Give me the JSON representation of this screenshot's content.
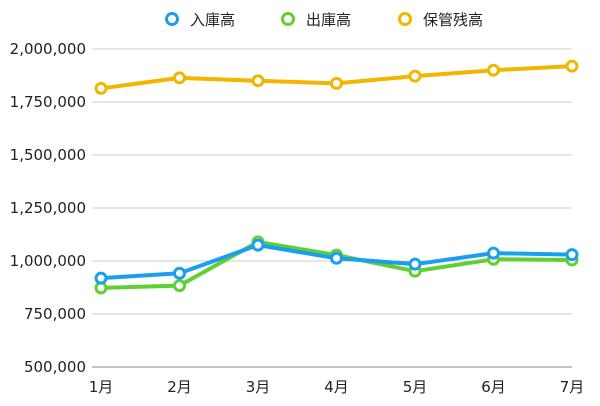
{
  "chart_data": {
    "type": "line",
    "title": "",
    "xlabel": "",
    "ylabel": "",
    "categories": [
      "1月",
      "2月",
      "3月",
      "4月",
      "5月",
      "6月",
      "7月"
    ],
    "ylim": [
      500000,
      2000000
    ],
    "yticks": [
      500000,
      750000,
      1000000,
      1250000,
      1500000,
      1750000,
      2000000
    ],
    "ytick_labels": [
      "500,000",
      "750,000",
      "1,000,000",
      "1,250,000",
      "1,500,000",
      "1,750,000",
      "2,000,000"
    ],
    "grid": true,
    "legend_position": "top",
    "series": [
      {
        "name": "入庫高",
        "color": "#1a9ff0",
        "values": [
          919000,
          942000,
          1075000,
          1013000,
          985000,
          1037000,
          1030000
        ]
      },
      {
        "name": "出庫高",
        "color": "#5fcf32",
        "values": [
          873000,
          884000,
          1090000,
          1028000,
          952000,
          1008000,
          1005000
        ]
      },
      {
        "name": "保管残高",
        "color": "#f2b600",
        "values": [
          1814000,
          1864000,
          1850000,
          1838000,
          1872000,
          1900000,
          1919000
        ]
      }
    ]
  }
}
